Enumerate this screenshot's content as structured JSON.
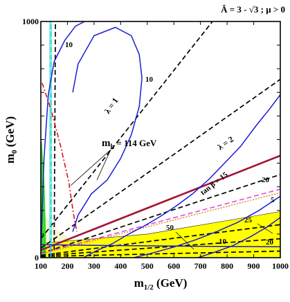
{
  "chart_data": {
    "type": "line",
    "title": "Â = 3 - √3 ; μ > 0",
    "xlabel_main": "m",
    "xlabel_sub": "1/2",
    "xlabel_unit": " (GeV)",
    "ylabel_main": "m",
    "ylabel_sub": "0",
    "ylabel_unit": " (GeV)",
    "xlim": [
      100,
      1000
    ],
    "ylim": [
      0,
      1000
    ],
    "x_ticks": [
      100,
      200,
      300,
      400,
      500,
      600,
      700,
      800,
      900,
      1000
    ],
    "y_tick_labels": [
      "0",
      "1000"
    ],
    "y_ticks": [
      0,
      1000
    ],
    "colors": {
      "contour": "#1a1ad6",
      "lambda": "#000000",
      "higgs": "#e01010",
      "relic": "#ffff00",
      "relic_edge": "#1a1a1a",
      "neutral": "#f6f5d2",
      "chargino": "#7fe9e9",
      "b_to_s_gamma": "#33dd22",
      "tan_beta": "#a4122f",
      "magenta": "#e040e0",
      "orange": "#d98a1a"
    },
    "annotations": {
      "mh_main": "m",
      "mh_sub": "h",
      "mh_value": " = 114 GeV",
      "lambda1": "λ = 1",
      "lambda2": "λ = 2",
      "tan_beta": "tan β = 15",
      "c10a": "10",
      "c10b": "10",
      "c20a": "20",
      "c20b": "20",
      "c5": "5",
      "c25": "25",
      "c50": "50",
      "c10c": "10"
    },
    "series": [
      {
        "name": "λ = 1",
        "style": "dashed",
        "x": [
          100,
          745
        ],
        "y": [
          80,
          1000
        ]
      },
      {
        "name": "λ = 2",
        "style": "dashed",
        "x": [
          100,
          1000
        ],
        "y": [
          40,
          755
        ]
      },
      {
        "style": "dashed",
        "x": [
          100,
          1000
        ],
        "y": [
          18,
          352
        ]
      },
      {
        "style": "dashed",
        "x": [
          100,
          1000
        ],
        "y": [
          10,
          140
        ]
      },
      {
        "style": "dashed",
        "x": [
          100,
          1000
        ],
        "y": [
          8,
          80
        ]
      },
      {
        "style": "dashed",
        "x": [
          100,
          1000
        ],
        "y": [
          5,
          28
        ]
      },
      {
        "style": "dashed",
        "x": [
          150,
          155
        ],
        "y": [
          0,
          1000
        ]
      },
      {
        "name": "tan β = 15",
        "style": "solid",
        "x": [
          100,
          1000
        ],
        "y": [
          32,
          432
        ]
      },
      {
        "style": "dashed",
        "x": [
          100,
          1000
        ],
        "y": [
          18,
          290
        ]
      },
      {
        "style": "dotted",
        "x": [
          100,
          1000
        ],
        "y": [
          15,
          275
        ]
      },
      {
        "name": "m_h = 114 GeV",
        "style": "dashdot",
        "x": [
          105,
          140,
          175,
          205,
          222,
          235
        ],
        "y": [
          740,
          620,
          470,
          320,
          190,
          110
        ]
      },
      {
        "style": "dashed",
        "x": [
          138,
          138
        ],
        "y": [
          0,
          1000
        ]
      },
      {
        "name": "10",
        "style": "solid",
        "x": [
          100,
          112,
          128,
          150,
          190,
          230,
          265
        ],
        "y": [
          20,
          420,
          690,
          830,
          920,
          980,
          1000
        ]
      },
      {
        "name": "10",
        "style": "solid",
        "x": [
          220,
          240,
          290,
          350,
          400,
          440,
          470,
          480,
          470,
          440,
          380,
          300,
          240,
          220
        ],
        "y": [
          110,
          180,
          270,
          330,
          420,
          520,
          640,
          760,
          860,
          940,
          975,
          940,
          820,
          700
        ]
      },
      {
        "style": "solid",
        "x": [
          260,
          310,
          370,
          430,
          490,
          550,
          610,
          670,
          730,
          790,
          850,
          910,
          960,
          1000
        ],
        "y": [
          0,
          30,
          60,
          100,
          135,
          175,
          220,
          270,
          330,
          400,
          470,
          560,
          630,
          690
        ]
      },
      {
        "style": "solid",
        "x": [
          450,
          520,
          600,
          680,
          760,
          840,
          920,
          1000
        ],
        "y": [
          0,
          20,
          45,
          75,
          110,
          150,
          200,
          260
        ]
      },
      {
        "style": "solid",
        "x": [
          690,
          750,
          820,
          890,
          950,
          1000
        ],
        "y": [
          0,
          22,
          50,
          90,
          130,
          170
        ]
      },
      {
        "style": "solid",
        "x": [
          100,
          300,
          500,
          700,
          900,
          1000
        ],
        "y": [
          55,
          52,
          50,
          48,
          47,
          46
        ]
      }
    ]
  }
}
